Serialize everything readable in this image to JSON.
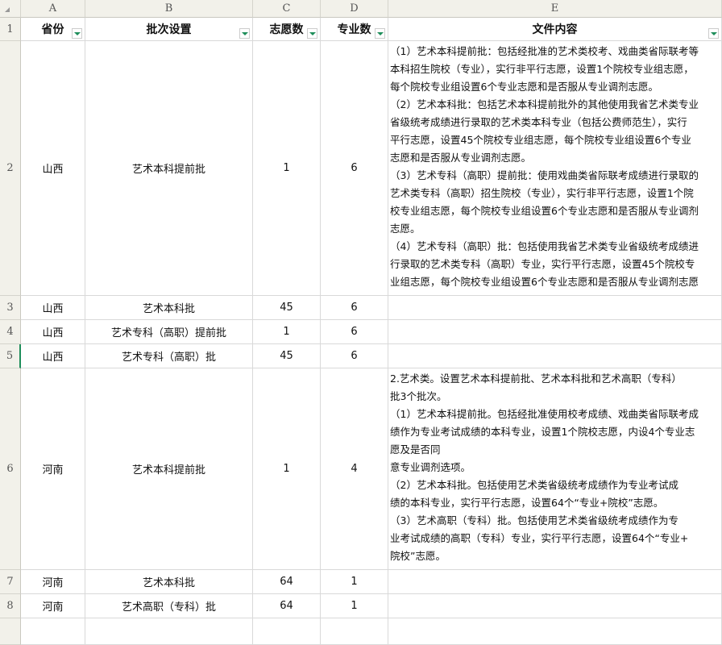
{
  "columns": [
    "A",
    "B",
    "C",
    "D",
    "E"
  ],
  "rows": [
    "1",
    "2",
    "3",
    "4",
    "5",
    "6",
    "7",
    "8"
  ],
  "headers": [
    "省份",
    "批次设置",
    "志愿数",
    "专业数",
    "文件内容"
  ],
  "data": [
    {
      "province": "山西",
      "batch": "艺术本科提前批",
      "wishes": "1",
      "majors": "6",
      "content": [
        "（1）艺术本科提前批：包括经批准的艺术类校考、戏曲类省际联考等",
        "本科招生院校（专业），实行非平行志愿，设置1个院校专业组志愿，",
        "每个院校专业组设置6个专业志愿和是否服从专业调剂志愿。",
        "（2）艺术本科批：包括艺术本科提前批外的其他使用我省艺术类专业",
        "省级统考成绩进行录取的艺术类本科专业（包括公费师范生），实行",
        "平行志愿，设置45个院校专业组志愿，每个院校专业组设置6个专业",
        "志愿和是否服从专业调剂志愿。",
        "（3）艺术专科（高职）提前批：使用戏曲类省际联考成绩进行录取的",
        "艺术类专科（高职）招生院校（专业），实行非平行志愿，设置1个院",
        "校专业组志愿，每个院校专业组设置6个专业志愿和是否服从专业调剂",
        "志愿。",
        "（4）艺术专科（高职）批：包括使用我省艺术类专业省级统考成绩进",
        "行录取的艺术类专科（高职）专业，实行平行志愿，设置45个院校专",
        "业组志愿，每个院校专业组设置6个专业志愿和是否服从专业调剂志愿"
      ]
    },
    {
      "province": "山西",
      "batch": "艺术本科批",
      "wishes": "45",
      "majors": "6",
      "content": []
    },
    {
      "province": "山西",
      "batch": "艺术专科（高职）提前批",
      "wishes": "1",
      "majors": "6",
      "content": []
    },
    {
      "province": "山西",
      "batch": "艺术专科（高职）批",
      "wishes": "45",
      "majors": "6",
      "content": []
    },
    {
      "province": "河南",
      "batch": "艺术本科提前批",
      "wishes": "1",
      "majors": "4",
      "content": [
        "   2.艺术类。设置艺术本科提前批、艺术本科批和艺术高职（专科）",
        "批3个批次。",
        "（1）艺术本科提前批。包括经批准使用校考成绩、戏曲类省际联考成",
        "绩作为专业考试成绩的本科专业，设置1个院校志愿，内设4个专业志",
        "愿及是否同",
        "意专业调剂选项。",
        "          （2）艺术本科批。包括使用艺术类省级统考成绩作为专业考试成",
        "绩的本科专业，实行平行志愿，设置64个“专业+院校”志愿。",
        "          （3）艺术高职（专科）批。包括使用艺术类省级统考成绩作为专",
        "业考试成绩的高职（专科）专业，实行平行志愿，设置64个“专业+",
        "院校”志愿。"
      ]
    },
    {
      "province": "河南",
      "batch": "艺术本科批",
      "wishes": "64",
      "majors": "1",
      "content": []
    },
    {
      "province": "河南",
      "batch": "艺术高职（专科）批",
      "wishes": "64",
      "majors": "1",
      "content": []
    }
  ],
  "colors": {
    "header_bg": "#f2f1ea",
    "grid": "#d9d9d9",
    "filter_arrow": "#1e8e5a",
    "selected_row_marker": "#1e8e5a"
  }
}
